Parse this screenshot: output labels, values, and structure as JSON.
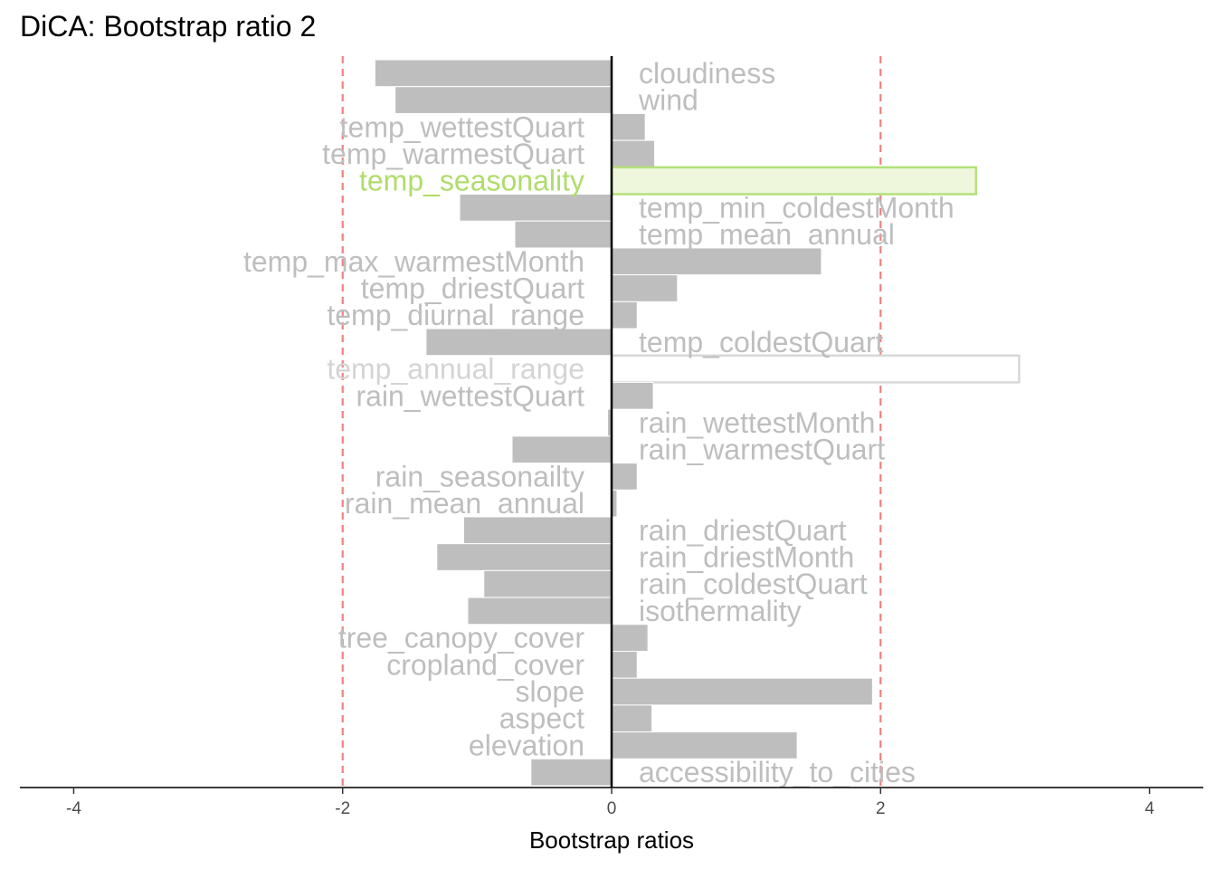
{
  "chart_data": {
    "type": "bar",
    "orientation": "horizontal",
    "title": "DiCA: Bootstrap ratio 2",
    "xlabel": "Bootstrap ratios",
    "ylabel": "",
    "xlim": [
      -4.4,
      4.4
    ],
    "xticks": [
      -4,
      -2,
      0,
      2,
      4
    ],
    "threshold_lines": [
      -2,
      2
    ],
    "grid": false,
    "colors": {
      "bar_fill": "#bebebe",
      "label_text": "#bebebe",
      "threshold_line": "#f08080",
      "highlight_fill": "#eef7dc",
      "highlight_stroke": "#b5e07a",
      "highlight_text": "#b0dc6c",
      "faded_stroke": "#d8d8d8",
      "faded_text": "#d4d4d4"
    },
    "categories": [
      "cloudiness",
      "wind",
      "temp_wettestQuart",
      "temp_warmestQuart",
      "temp_seasonality",
      "temp_min_coldestMonth",
      "temp_mean_annual",
      "temp_max_warmestMonth",
      "temp_driestQuart",
      "temp_diurnal_range",
      "temp_coldestQuart",
      "temp_annual_range",
      "rain_wettestQuart",
      "rain_wettestMonth",
      "rain_warmestQuart",
      "rain_seasonailty",
      "rain_mean_annual",
      "rain_driestQuart",
      "rain_driestMonth",
      "rain_coldestQuart",
      "isothermality",
      "tree_canopy_cover",
      "cropland_cover",
      "slope",
      "aspect",
      "elevation",
      "accessibility_to_cities"
    ],
    "values": [
      -1.76,
      -1.61,
      0.25,
      0.32,
      2.71,
      -1.13,
      -0.72,
      1.56,
      0.49,
      0.19,
      -1.38,
      3.03,
      0.31,
      -0.03,
      -0.74,
      0.19,
      0.04,
      -1.1,
      -1.3,
      -0.95,
      -1.07,
      0.27,
      0.19,
      1.94,
      0.3,
      1.38,
      -0.6
    ],
    "highlighted": [
      "temp_seasonality"
    ],
    "faded": [
      "temp_annual_range"
    ]
  }
}
